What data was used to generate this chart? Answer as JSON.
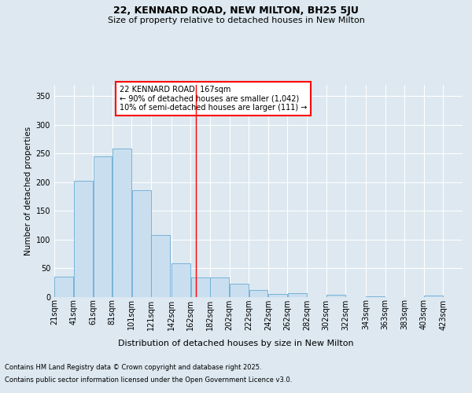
{
  "title": "22, KENNARD ROAD, NEW MILTON, BH25 5JU",
  "subtitle": "Size of property relative to detached houses in New Milton",
  "xlabel": "Distribution of detached houses by size in New Milton",
  "ylabel": "Number of detached properties",
  "annotation_line1": "22 KENNARD ROAD: 167sqm",
  "annotation_line2": "← 90% of detached houses are smaller (1,042)",
  "annotation_line3": "10% of semi-detached houses are larger (111) →",
  "footer_line1": "Contains HM Land Registry data © Crown copyright and database right 2025.",
  "footer_line2": "Contains public sector information licensed under the Open Government Licence v3.0.",
  "bar_left_edges": [
    21,
    41,
    61,
    81,
    101,
    121,
    142,
    162,
    182,
    202,
    222,
    242,
    262,
    282,
    302,
    322,
    343,
    363,
    383,
    403
  ],
  "bar_heights": [
    35,
    202,
    245,
    258,
    185,
    107,
    58,
    33,
    33,
    22,
    11,
    5,
    6,
    0,
    3,
    0,
    1,
    0,
    0,
    2
  ],
  "bar_color": "#c9dff0",
  "bar_edge_color": "#6aaad4",
  "redline_x": 167,
  "ylim": [
    0,
    370
  ],
  "yticks": [
    0,
    50,
    100,
    150,
    200,
    250,
    300,
    350
  ],
  "xtick_labels": [
    "21sqm",
    "41sqm",
    "61sqm",
    "81sqm",
    "101sqm",
    "121sqm",
    "142sqm",
    "162sqm",
    "182sqm",
    "202sqm",
    "222sqm",
    "242sqm",
    "262sqm",
    "282sqm",
    "302sqm",
    "322sqm",
    "343sqm",
    "363sqm",
    "383sqm",
    "403sqm",
    "423sqm"
  ],
  "background_color": "#dde8f0",
  "plot_bg_color": "#dde8f0",
  "grid_color": "#ffffff",
  "title_fontsize": 9,
  "subtitle_fontsize": 8,
  "axis_fontsize": 7,
  "ylabel_fontsize": 7.5,
  "annotation_fontsize": 7,
  "footer_fontsize": 6
}
